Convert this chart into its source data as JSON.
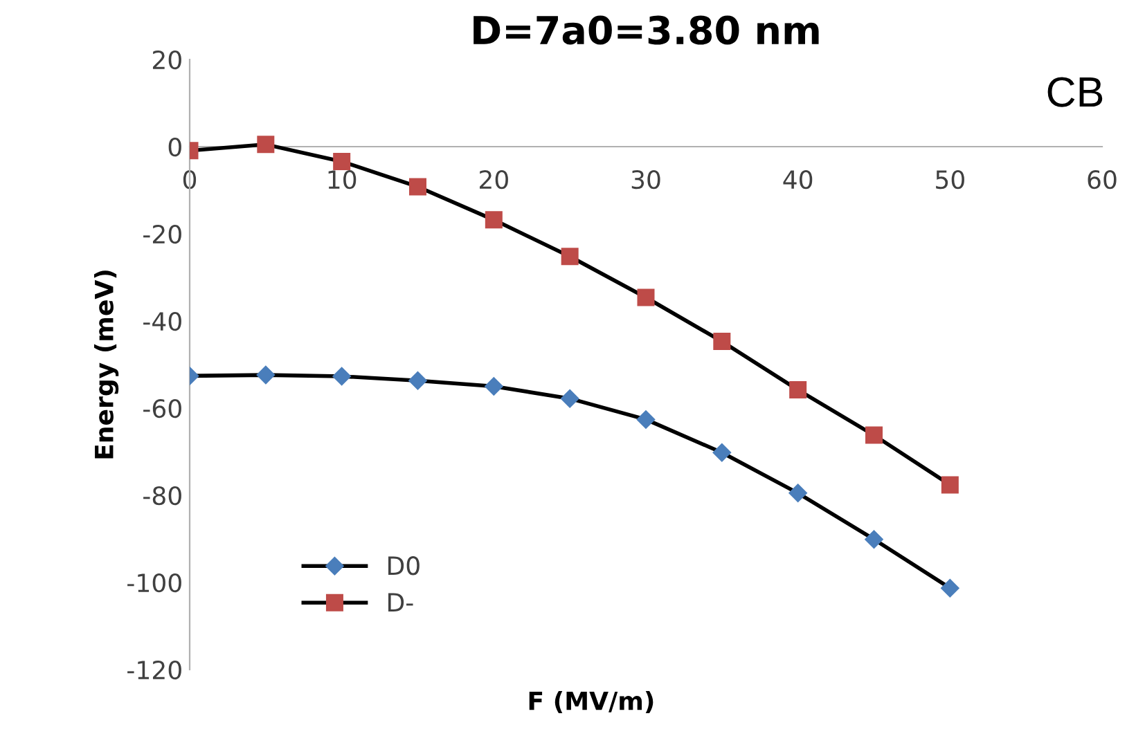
{
  "chart_data": {
    "type": "line",
    "title": "D=7a0=3.80 nm",
    "xlabel": "F (MV/m)",
    "ylabel": "Energy (meV)",
    "annotations": [
      "CB"
    ],
    "x": [
      0,
      5,
      10,
      15,
      20,
      25,
      30,
      35,
      40,
      45,
      50
    ],
    "series": [
      {
        "name": "D0",
        "color": "#4a7ebb",
        "marker": "diamond",
        "values": [
          -52.6,
          -52.4,
          -52.7,
          -53.7,
          -55.0,
          -57.8,
          -62.6,
          -70.2,
          -79.5,
          -90.1,
          -101.3
        ]
      },
      {
        "name": "D-",
        "color": "#be4b48",
        "marker": "square",
        "values": [
          -0.9,
          0.5,
          -3.4,
          -9.2,
          -16.8,
          -25.2,
          -34.6,
          -44.7,
          -55.8,
          -66.2,
          -77.6
        ]
      }
    ],
    "xlim": [
      0,
      60
    ],
    "xticks": [
      0,
      10,
      20,
      30,
      40,
      50,
      60
    ],
    "ylim": [
      -120,
      20
    ],
    "yticks": [
      20,
      0,
      -20,
      -40,
      -60,
      -80,
      -100,
      -120
    ],
    "grid": false,
    "legend": "bottom left"
  }
}
